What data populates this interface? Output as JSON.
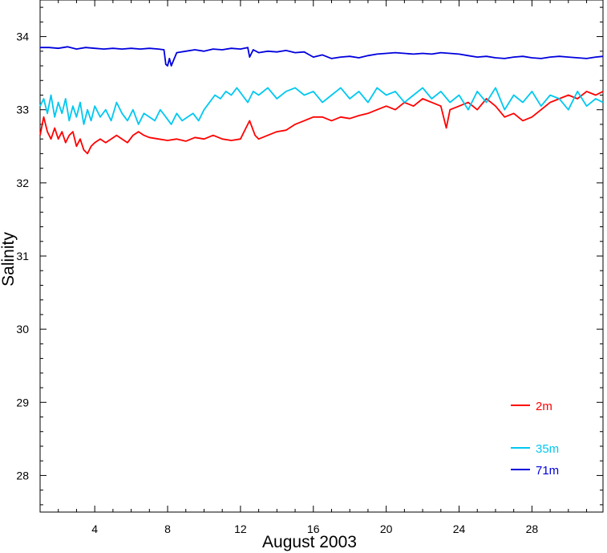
{
  "chart_data": {
    "type": "line",
    "title": "",
    "xlabel": "August 2003",
    "ylabel": "Salinity",
    "xlim": [
      1,
      31.9
    ],
    "ylim": [
      27.5,
      34.5
    ],
    "x_major_ticks": [
      4,
      8,
      12,
      16,
      20,
      24,
      28
    ],
    "x_minor_step": 1,
    "y_major_ticks": [
      28,
      29,
      30,
      31,
      32,
      33,
      34
    ],
    "y_minor_step": 0.2,
    "grid": false,
    "legend_position": "bottom-right",
    "series": [
      {
        "name": "2m",
        "color": "#ff0000",
        "x": [
          1.0,
          1.2,
          1.4,
          1.6,
          1.8,
          2.0,
          2.2,
          2.4,
          2.6,
          2.8,
          3.0,
          3.2,
          3.4,
          3.6,
          3.8,
          4.0,
          4.3,
          4.6,
          4.9,
          5.2,
          5.5,
          5.8,
          6.1,
          6.4,
          6.7,
          7.0,
          7.5,
          8.0,
          8.5,
          9.0,
          9.5,
          10.0,
          10.5,
          11.0,
          11.5,
          12.0,
          12.3,
          12.5,
          12.8,
          13.0,
          13.5,
          14.0,
          14.5,
          15.0,
          15.5,
          16.0,
          16.5,
          17.0,
          17.5,
          18.0,
          18.5,
          19.0,
          19.5,
          20.0,
          20.5,
          21.0,
          21.5,
          22.0,
          22.5,
          23.0,
          23.3,
          23.5,
          24.0,
          24.5,
          25.0,
          25.5,
          26.0,
          26.5,
          27.0,
          27.5,
          28.0,
          28.5,
          29.0,
          29.5,
          30.0,
          30.5,
          31.0,
          31.5,
          31.9
        ],
        "values": [
          32.65,
          32.9,
          32.7,
          32.6,
          32.75,
          32.6,
          32.7,
          32.55,
          32.65,
          32.7,
          32.5,
          32.6,
          32.45,
          32.4,
          32.5,
          32.55,
          32.6,
          32.55,
          32.6,
          32.65,
          32.6,
          32.55,
          32.65,
          32.7,
          32.65,
          32.62,
          32.6,
          32.58,
          32.6,
          32.57,
          32.62,
          32.6,
          32.65,
          32.6,
          32.58,
          32.6,
          32.75,
          32.85,
          32.65,
          32.6,
          32.65,
          32.7,
          32.72,
          32.8,
          32.85,
          32.9,
          32.9,
          32.85,
          32.9,
          32.88,
          32.92,
          32.95,
          33.0,
          33.05,
          33.0,
          33.1,
          33.05,
          33.15,
          33.1,
          33.05,
          32.75,
          33.0,
          33.05,
          33.1,
          33.0,
          33.15,
          33.05,
          32.9,
          32.95,
          32.85,
          32.9,
          33.0,
          33.1,
          33.15,
          33.2,
          33.15,
          33.25,
          33.2,
          33.25
        ]
      },
      {
        "name": "35m",
        "color": "#00c8f0",
        "x": [
          1.0,
          1.2,
          1.4,
          1.6,
          1.8,
          2.0,
          2.2,
          2.4,
          2.6,
          2.8,
          3.0,
          3.2,
          3.4,
          3.6,
          3.8,
          4.0,
          4.3,
          4.6,
          4.9,
          5.2,
          5.5,
          5.8,
          6.1,
          6.4,
          6.7,
          7.0,
          7.3,
          7.6,
          7.9,
          8.2,
          8.5,
          8.8,
          9.1,
          9.4,
          9.7,
          10.0,
          10.3,
          10.6,
          10.9,
          11.2,
          11.5,
          11.8,
          12.1,
          12.4,
          12.7,
          13.0,
          13.5,
          14.0,
          14.5,
          15.0,
          15.5,
          16.0,
          16.5,
          17.0,
          17.5,
          18.0,
          18.5,
          19.0,
          19.5,
          20.0,
          20.5,
          21.0,
          21.5,
          22.0,
          22.5,
          23.0,
          23.5,
          24.0,
          24.5,
          25.0,
          25.5,
          26.0,
          26.5,
          27.0,
          27.5,
          28.0,
          28.5,
          29.0,
          29.5,
          30.0,
          30.5,
          31.0,
          31.5,
          31.9
        ],
        "values": [
          33.05,
          33.15,
          32.95,
          33.2,
          32.9,
          33.1,
          32.95,
          33.15,
          32.85,
          33.05,
          32.9,
          33.1,
          32.8,
          33.0,
          32.85,
          33.05,
          32.9,
          33.0,
          32.85,
          33.1,
          32.95,
          32.85,
          33.0,
          32.8,
          32.95,
          32.9,
          32.85,
          33.0,
          32.9,
          32.8,
          32.95,
          32.85,
          32.9,
          32.95,
          32.85,
          33.0,
          33.1,
          33.2,
          33.15,
          33.25,
          33.2,
          33.3,
          33.2,
          33.1,
          33.25,
          33.2,
          33.3,
          33.15,
          33.25,
          33.3,
          33.2,
          33.25,
          33.1,
          33.2,
          33.3,
          33.15,
          33.25,
          33.1,
          33.3,
          33.2,
          33.25,
          33.1,
          33.2,
          33.3,
          33.15,
          33.25,
          33.1,
          33.2,
          33.0,
          33.25,
          33.1,
          33.3,
          33.0,
          33.2,
          33.1,
          33.25,
          33.05,
          33.2,
          33.15,
          33.0,
          33.25,
          33.05,
          33.15,
          33.1
        ]
      },
      {
        "name": "71m",
        "color": "#0000dd",
        "x": [
          1.0,
          1.5,
          2.0,
          2.5,
          3.0,
          3.5,
          4.0,
          4.5,
          5.0,
          5.5,
          6.0,
          6.5,
          7.0,
          7.5,
          7.8,
          7.9,
          8.0,
          8.1,
          8.2,
          8.5,
          9.0,
          9.5,
          10.0,
          10.5,
          11.0,
          11.5,
          12.0,
          12.4,
          12.5,
          12.7,
          13.0,
          13.5,
          14.0,
          14.5,
          15.0,
          15.5,
          16.0,
          16.5,
          17.0,
          17.5,
          18.0,
          18.5,
          19.0,
          19.5,
          20.0,
          20.5,
          21.0,
          21.5,
          22.0,
          22.5,
          23.0,
          23.5,
          24.0,
          24.5,
          25.0,
          25.5,
          26.0,
          26.5,
          27.0,
          27.5,
          28.0,
          28.5,
          29.0,
          29.5,
          30.0,
          30.5,
          31.0,
          31.5,
          31.9
        ],
        "values": [
          33.85,
          33.85,
          33.84,
          33.86,
          33.83,
          33.85,
          33.84,
          33.83,
          33.84,
          33.83,
          33.84,
          33.83,
          33.84,
          33.83,
          33.82,
          33.62,
          33.6,
          33.7,
          33.6,
          33.78,
          33.8,
          33.82,
          33.8,
          33.83,
          33.82,
          33.84,
          33.83,
          33.85,
          33.72,
          33.82,
          33.78,
          33.8,
          33.79,
          33.81,
          33.78,
          33.79,
          33.72,
          33.75,
          33.7,
          33.72,
          33.73,
          33.71,
          33.74,
          33.76,
          33.77,
          33.78,
          33.77,
          33.76,
          33.77,
          33.76,
          33.78,
          33.77,
          33.76,
          33.74,
          33.72,
          33.73,
          33.71,
          33.7,
          33.72,
          33.73,
          33.71,
          33.7,
          33.72,
          33.73,
          33.72,
          33.71,
          33.7,
          33.72,
          33.73
        ]
      }
    ]
  }
}
